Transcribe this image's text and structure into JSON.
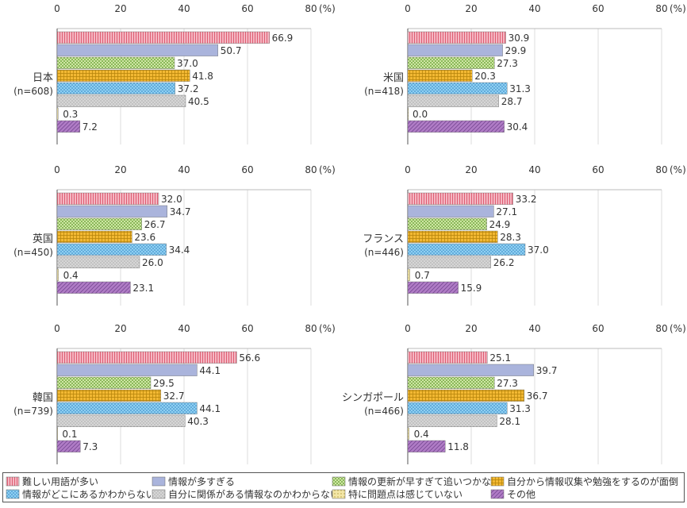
{
  "axis_unit": "(%)",
  "legend": [
    {
      "label": "難しい用語が多い",
      "color": "#f4b6c2",
      "pattern": "vlines"
    },
    {
      "label": "情報が多すぎる",
      "color": "#aab4dc",
      "pattern": "solid"
    },
    {
      "label": "情報の更新が早すぎて追いつかない",
      "color": "#cfe6a4",
      "pattern": "checker"
    },
    {
      "label": "自分から情報収集や勉強をするのが面倒",
      "color": "#f2b833",
      "pattern": "grid"
    },
    {
      "label": "情報がどこにあるかわからない",
      "color": "#8ed0f2",
      "pattern": "dots"
    },
    {
      "label": "自分に関係がある情報なのかわからない",
      "color": "#d6d6d6",
      "pattern": "stipple"
    },
    {
      "label": "特に問題点は感じていない",
      "color": "#f3e6a6",
      "pattern": "hatch"
    },
    {
      "label": "その他",
      "color": "#b07cc6",
      "pattern": "diag"
    }
  ],
  "chart_data": [
    {
      "type": "bar",
      "orientation": "horizontal",
      "label": "日本",
      "n_label": "(n=608)",
      "ticks": [
        "0",
        "20",
        "40",
        "60",
        "80"
      ],
      "xlim": [
        0,
        80
      ],
      "values": [
        66.9,
        50.7,
        37.0,
        41.8,
        37.2,
        40.5,
        0.3,
        7.2
      ],
      "value_labels": [
        "66.9",
        "50.7",
        "37.0",
        "41.8",
        "37.2",
        "40.5",
        "0.3",
        "7.2"
      ]
    },
    {
      "type": "bar",
      "orientation": "horizontal",
      "label": "米国",
      "n_label": "(n=418)",
      "ticks": [
        "0",
        "20",
        "40",
        "60",
        "80"
      ],
      "xlim": [
        0,
        80
      ],
      "values": [
        30.9,
        29.9,
        27.3,
        20.3,
        31.3,
        28.7,
        0.0,
        30.4
      ],
      "value_labels": [
        "30.9",
        "29.9",
        "27.3",
        "20.3",
        "31.3",
        "28.7",
        "0.0",
        "30.4"
      ]
    },
    {
      "type": "bar",
      "orientation": "horizontal",
      "label": "英国",
      "n_label": "(n=450)",
      "ticks": [
        "0",
        "20",
        "40",
        "60",
        "80"
      ],
      "xlim": [
        0,
        80
      ],
      "values": [
        32.0,
        34.7,
        26.7,
        23.6,
        34.4,
        26.0,
        0.4,
        23.1
      ],
      "value_labels": [
        "32.0",
        "34.7",
        "26.7",
        "23.6",
        "34.4",
        "26.0",
        "0.4",
        "23.1"
      ]
    },
    {
      "type": "bar",
      "orientation": "horizontal",
      "label": "フランス",
      "n_label": "(n=446)",
      "ticks": [
        "0",
        "20",
        "40",
        "60",
        "80"
      ],
      "xlim": [
        0,
        80
      ],
      "values": [
        33.2,
        27.1,
        24.9,
        28.3,
        37.0,
        26.2,
        0.7,
        15.9
      ],
      "value_labels": [
        "33.2",
        "27.1",
        "24.9",
        "28.3",
        "37.0",
        "26.2",
        "0.7",
        "15.9"
      ]
    },
    {
      "type": "bar",
      "orientation": "horizontal",
      "label": "韓国",
      "n_label": "(n=739)",
      "ticks": [
        "0",
        "20",
        "40",
        "60",
        "80"
      ],
      "xlim": [
        0,
        80
      ],
      "values": [
        56.6,
        44.1,
        29.5,
        32.7,
        44.1,
        40.3,
        0.1,
        7.3
      ],
      "value_labels": [
        "56.6",
        "44.1",
        "29.5",
        "32.7",
        "44.1",
        "40.3",
        "0.1",
        "7.3"
      ]
    },
    {
      "type": "bar",
      "orientation": "horizontal",
      "label": "シンガポール",
      "n_label": "(n=466)",
      "ticks": [
        "0",
        "20",
        "40",
        "60",
        "80"
      ],
      "xlim": [
        0,
        80
      ],
      "values": [
        25.1,
        39.7,
        27.3,
        36.7,
        31.3,
        28.1,
        0.4,
        11.8
      ],
      "value_labels": [
        "25.1",
        "39.7",
        "27.3",
        "36.7",
        "31.3",
        "28.1",
        "0.4",
        "11.8"
      ]
    }
  ]
}
